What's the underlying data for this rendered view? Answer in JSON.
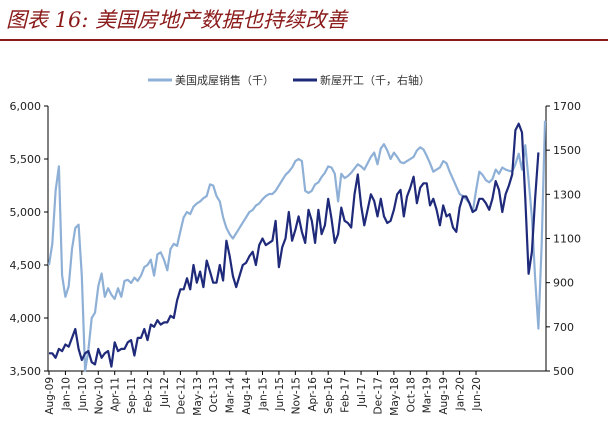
{
  "figure_title": "图表 16:  美国房地产数据也持续改善",
  "chart_data": {
    "type": "line",
    "x_tick_labels": [
      "Aug-09",
      "Jan-10",
      "Jun-10",
      "Nov-10",
      "Apr-11",
      "Sep-11",
      "Feb-12",
      "Jul-12",
      "Dec-12",
      "May-13",
      "Oct-13",
      "Mar-14",
      "Aug-14",
      "Jan-15",
      "Jun-15",
      "Nov-15",
      "Apr-16",
      "Sep-16",
      "Feb-17",
      "Jul-17",
      "Dec-17",
      "May-18",
      "Oct-18",
      "Mar-19",
      "Aug-19",
      "Jan-20",
      "Jun-20"
    ],
    "y_left": {
      "range": [
        3500,
        6000
      ],
      "ticks": [
        3500,
        4000,
        4500,
        5000,
        5500,
        6000
      ],
      "tick_labels": [
        "3,500",
        "4,000",
        "4,500",
        "5,000",
        "5,500",
        "6,000"
      ]
    },
    "y_right": {
      "range": [
        500,
        1700
      ],
      "ticks": [
        500,
        700,
        900,
        1100,
        1300,
        1500,
        1700
      ],
      "tick_labels": [
        "500",
        "700",
        "900",
        "1100",
        "1300",
        "1500",
        "1700"
      ]
    },
    "grid": false,
    "legend_position": "top-center",
    "series": [
      {
        "name": "美国成屋销售（千）",
        "axis": "left",
        "color": "#8fb0d6",
        "values": [
          4500,
          4700,
          5200,
          5430,
          4400,
          4200,
          4300,
          4650,
          4850,
          4880,
          4400,
          3500,
          3700,
          4000,
          4050,
          4300,
          4420,
          4200,
          4280,
          4220,
          4180,
          4280,
          4200,
          4350,
          4360,
          4330,
          4380,
          4350,
          4400,
          4480,
          4500,
          4550,
          4400,
          4600,
          4620,
          4550,
          4450,
          4650,
          4700,
          4680,
          4820,
          4950,
          5000,
          4980,
          5050,
          5080,
          5100,
          5130,
          5150,
          5260,
          5250,
          5150,
          5100,
          4950,
          4850,
          4790,
          4750,
          4800,
          4850,
          4900,
          4950,
          5000,
          5020,
          5060,
          5080,
          5120,
          5150,
          5170,
          5170,
          5200,
          5250,
          5300,
          5350,
          5380,
          5420,
          5480,
          5500,
          5480,
          5200,
          5180,
          5200,
          5260,
          5280,
          5330,
          5370,
          5430,
          5420,
          5360,
          5100,
          5360,
          5320,
          5340,
          5370,
          5410,
          5450,
          5430,
          5400,
          5460,
          5520,
          5560,
          5450,
          5600,
          5640,
          5580,
          5500,
          5560,
          5520,
          5470,
          5460,
          5480,
          5500,
          5520,
          5580,
          5610,
          5590,
          5530,
          5460,
          5380,
          5400,
          5420,
          5480,
          5460,
          5380,
          5310,
          5240,
          5170,
          5150,
          5120,
          5080,
          5000,
          5200,
          5380,
          5350,
          5300,
          5280,
          5310,
          5400,
          5360,
          5420,
          5400,
          5390,
          5380,
          5450,
          5550,
          5400,
          5630,
          5300,
          4950,
          4380,
          3900,
          4700,
          5860
        ]
      },
      {
        "name": "新屋开工（千，右轴）",
        "axis": "right",
        "color": "#1f2a7a",
        "values": [
          580,
          580,
          560,
          600,
          590,
          620,
          610,
          650,
          690,
          600,
          550,
          580,
          590,
          540,
          530,
          600,
          560,
          580,
          590,
          520,
          630,
          590,
          600,
          600,
          630,
          640,
          570,
          650,
          650,
          690,
          640,
          710,
          700,
          730,
          710,
          720,
          720,
          750,
          740,
          820,
          870,
          870,
          920,
          870,
          980,
          900,
          950,
          880,
          1000,
          950,
          900,
          900,
          980,
          910,
          1090,
          1020,
          930,
          880,
          930,
          980,
          990,
          1020,
          1040,
          980,
          1070,
          1100,
          1070,
          1080,
          1090,
          1180,
          970,
          1060,
          1100,
          1220,
          1090,
          1140,
          1200,
          1130,
          1080,
          1230,
          1180,
          1080,
          1230,
          1120,
          1160,
          1280,
          1190,
          1080,
          1120,
          1240,
          1180,
          1170,
          1150,
          1300,
          1390,
          1250,
          1160,
          1230,
          1300,
          1270,
          1200,
          1280,
          1200,
          1170,
          1180,
          1230,
          1300,
          1320,
          1200,
          1290,
          1330,
          1380,
          1260,
          1330,
          1350,
          1350,
          1250,
          1280,
          1230,
          1160,
          1250,
          1200,
          1210,
          1150,
          1130,
          1240,
          1290,
          1290,
          1260,
          1220,
          1230,
          1280,
          1280,
          1260,
          1230,
          1280,
          1360,
          1320,
          1220,
          1300,
          1340,
          1390,
          1590,
          1620,
          1580,
          1280,
          940,
          1040,
          1280,
          1490
        ]
      }
    ]
  }
}
